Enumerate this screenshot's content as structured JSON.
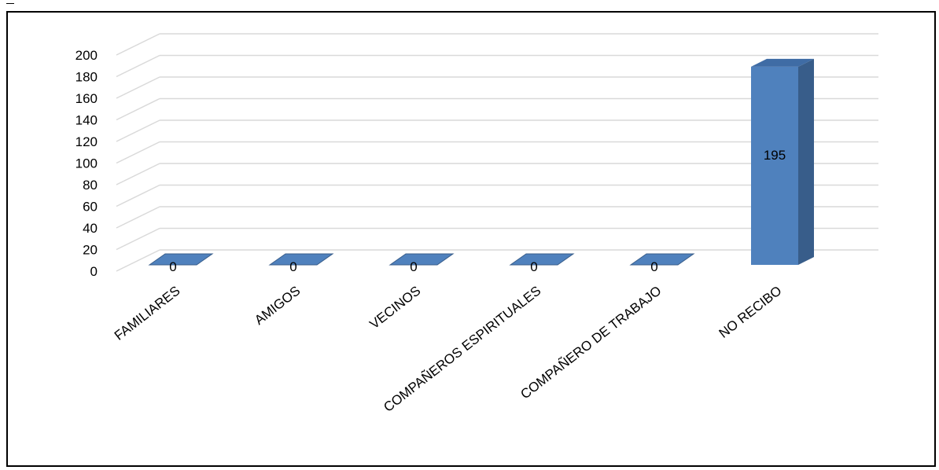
{
  "chart_data": {
    "type": "bar",
    "style": "3d-column",
    "categories": [
      "FAMILIARES",
      "AMIGOS",
      "VECINOS",
      "COMPAÑEROS ESPIRITUALES",
      "COMPAÑERO DE TRABAJO",
      "NO RECIBO"
    ],
    "values": [
      0,
      0,
      0,
      0,
      0,
      195
    ],
    "data_labels": [
      "0",
      "0",
      "0",
      "0",
      "0",
      "195"
    ],
    "y_ticks": [
      "0",
      "20",
      "40",
      "60",
      "80",
      "100",
      "120",
      "140",
      "160",
      "180",
      "200"
    ],
    "ylim": [
      0,
      200
    ],
    "grid": true,
    "legend": "none",
    "colors": {
      "bar_front": "#4F81BD",
      "bar_side": "#385D8A",
      "bar_top": "#3F6CA5",
      "gridline": "#D9D9D9"
    }
  }
}
